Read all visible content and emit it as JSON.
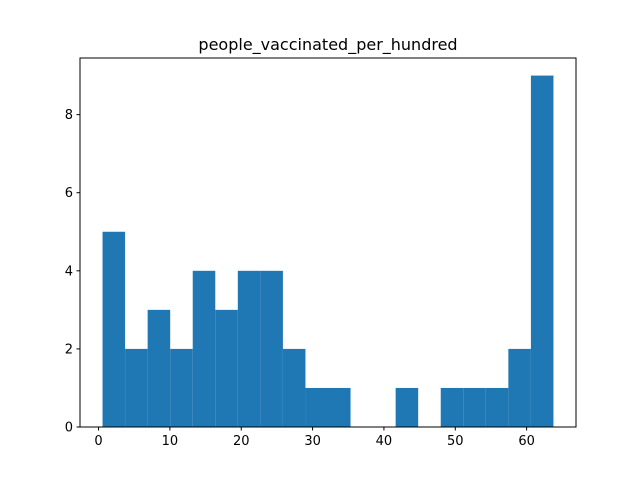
{
  "chart_data": {
    "type": "histogram",
    "title": "people_vaccinated_per_hundred",
    "bins": [
      0.56,
      3.72,
      6.88,
      10.04,
      13.2,
      16.36,
      19.52,
      22.68,
      25.84,
      29.0,
      32.16,
      35.32,
      38.48,
      41.64,
      44.8,
      47.96,
      51.12,
      54.28,
      57.44,
      60.6,
      63.76
    ],
    "counts": [
      5,
      2,
      3,
      2,
      4,
      3,
      4,
      4,
      2,
      1,
      1,
      0,
      0,
      1,
      0,
      1,
      1,
      1,
      2,
      9
    ],
    "color": "#1f77b4",
    "xlim": [
      -2.6,
      66.92
    ],
    "xticks": [
      0,
      10,
      20,
      30,
      40,
      50,
      60
    ],
    "ylim": [
      0,
      9.45
    ],
    "yticks": [
      0,
      2,
      4,
      6,
      8
    ]
  }
}
